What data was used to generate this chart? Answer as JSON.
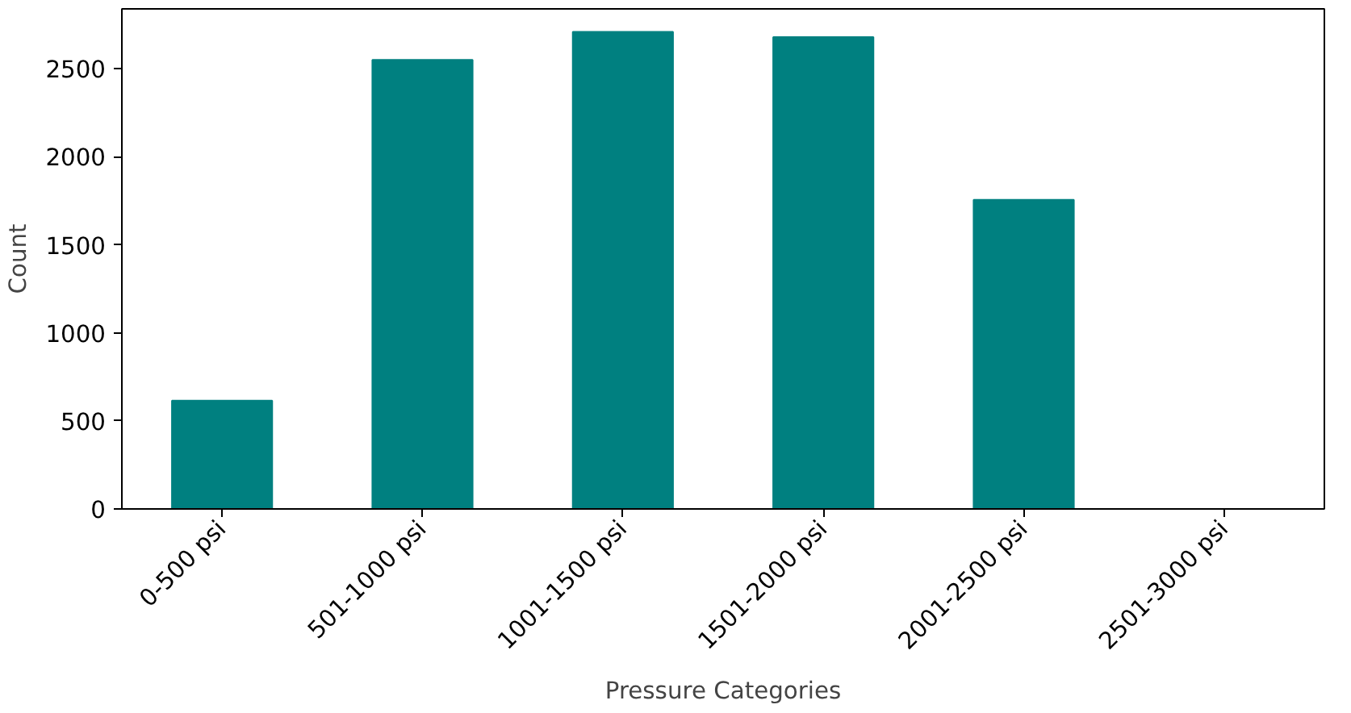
{
  "chart_data": {
    "type": "bar",
    "xlabel": "Pressure Categories",
    "ylabel": "Count",
    "categories": [
      "0-500 psi",
      "501-1000 psi",
      "1001-1500 psi",
      "1501-2000 psi",
      "2001-2500 psi",
      "2501-3000 psi"
    ],
    "values": [
      615,
      2550,
      2710,
      2680,
      1755,
      0
    ],
    "color": "#008080",
    "ylim": [
      0,
      2840
    ],
    "yticks": [
      0,
      500,
      1000,
      1500,
      2000,
      2500
    ],
    "grid": false
  }
}
